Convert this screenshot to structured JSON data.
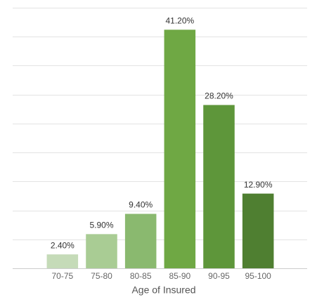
{
  "chart_data": {
    "type": "bar",
    "x_label": "Age of Insured",
    "categories": [
      "70-75",
      "75-80",
      "80-85",
      "85-90",
      "90-95",
      "95-100"
    ],
    "values": [
      2.4,
      5.9,
      9.4,
      41.2,
      28.2,
      12.9
    ],
    "value_labels": [
      "2.40%",
      "5.90%",
      "9.40%",
      "41.20%",
      "28.20%",
      "12.90%"
    ],
    "colors": [
      "#c5dbb8",
      "#a9cc94",
      "#8ab96f",
      "#6fa844",
      "#5e963a",
      "#4f7f31"
    ],
    "ylim": [
      0,
      45
    ],
    "yticks": [
      0,
      5,
      10,
      15,
      20,
      25,
      30,
      35,
      40,
      45
    ],
    "grid": true
  }
}
